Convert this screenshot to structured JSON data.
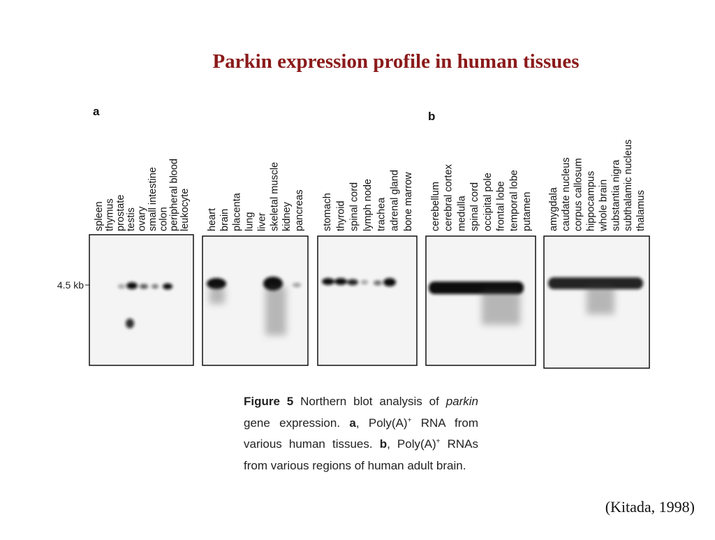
{
  "title": "Parkin expression profile in human tissues",
  "panels": [
    {
      "label": "a",
      "groups": [
        [
          "spleen",
          "thymus",
          "prostate",
          "testis",
          "ovary",
          "small intestine",
          "colon",
          [
            "peripheral blood",
            "leukocyte"
          ]
        ],
        [
          "heart",
          "brain",
          "placenta",
          "lung",
          "liver",
          "skeletal muscle",
          "kidney",
          "pancreas"
        ],
        [
          "stomach",
          "thyroid",
          "spinal cord",
          "lymph node",
          "trachea",
          "adrenal gland",
          "bone marrow"
        ]
      ]
    },
    {
      "label": "b",
      "groups": [
        [
          "cerebellum",
          "cerebral cortex",
          "medulla",
          "spinal cord",
          "occipital pole",
          "frontal lobe",
          "temporal lobe",
          "putamen"
        ],
        [
          "amygdala",
          "caudate nucleus",
          "corpus callosum",
          "hippocampus",
          "whole brain",
          "substantia nigra",
          "subthalamic nucleus",
          "thalamus"
        ]
      ]
    }
  ],
  "marker": "4.5 kb",
  "caption": [
    "Figure 5",
    " Northern blot analysis of ",
    "parkin",
    " gene expression. ",
    "a",
    ", Poly(A)",
    "+",
    " RNA from various human tissues. ",
    "b",
    ", Poly(A)",
    "+",
    " RNAs from various regions of human adult brain."
  ],
  "citation": "(Kitada, 1998)"
}
